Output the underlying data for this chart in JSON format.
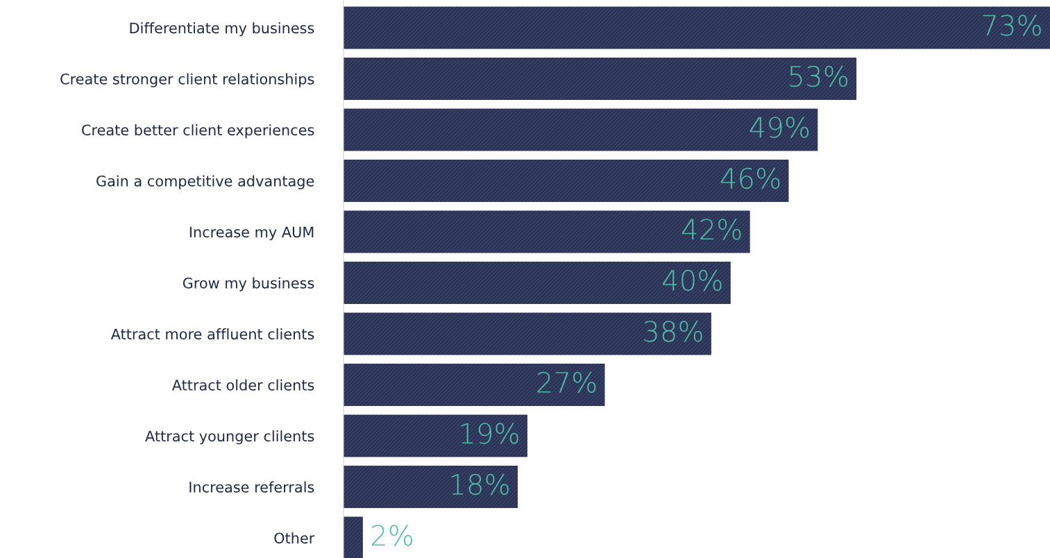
{
  "chart_data": {
    "type": "bar",
    "orientation": "horizontal",
    "categories": [
      "Differentiate my business",
      "Create stronger client relationships",
      "Create better client experiences",
      "Gain a competitive advantage",
      "Increase my AUM",
      "Grow my business",
      "Attract more affluent clients",
      "Attract older clients",
      "Attract younger clilents",
      "Increase referrals",
      "Other"
    ],
    "values": [
      73,
      53,
      49,
      46,
      42,
      40,
      38,
      27,
      19,
      18,
      2
    ],
    "value_labels": [
      "73%",
      "53%",
      "49%",
      "46%",
      "42%",
      "40%",
      "38%",
      "27%",
      "19%",
      "18%",
      "2%"
    ],
    "color": "#2b3356"
  }
}
